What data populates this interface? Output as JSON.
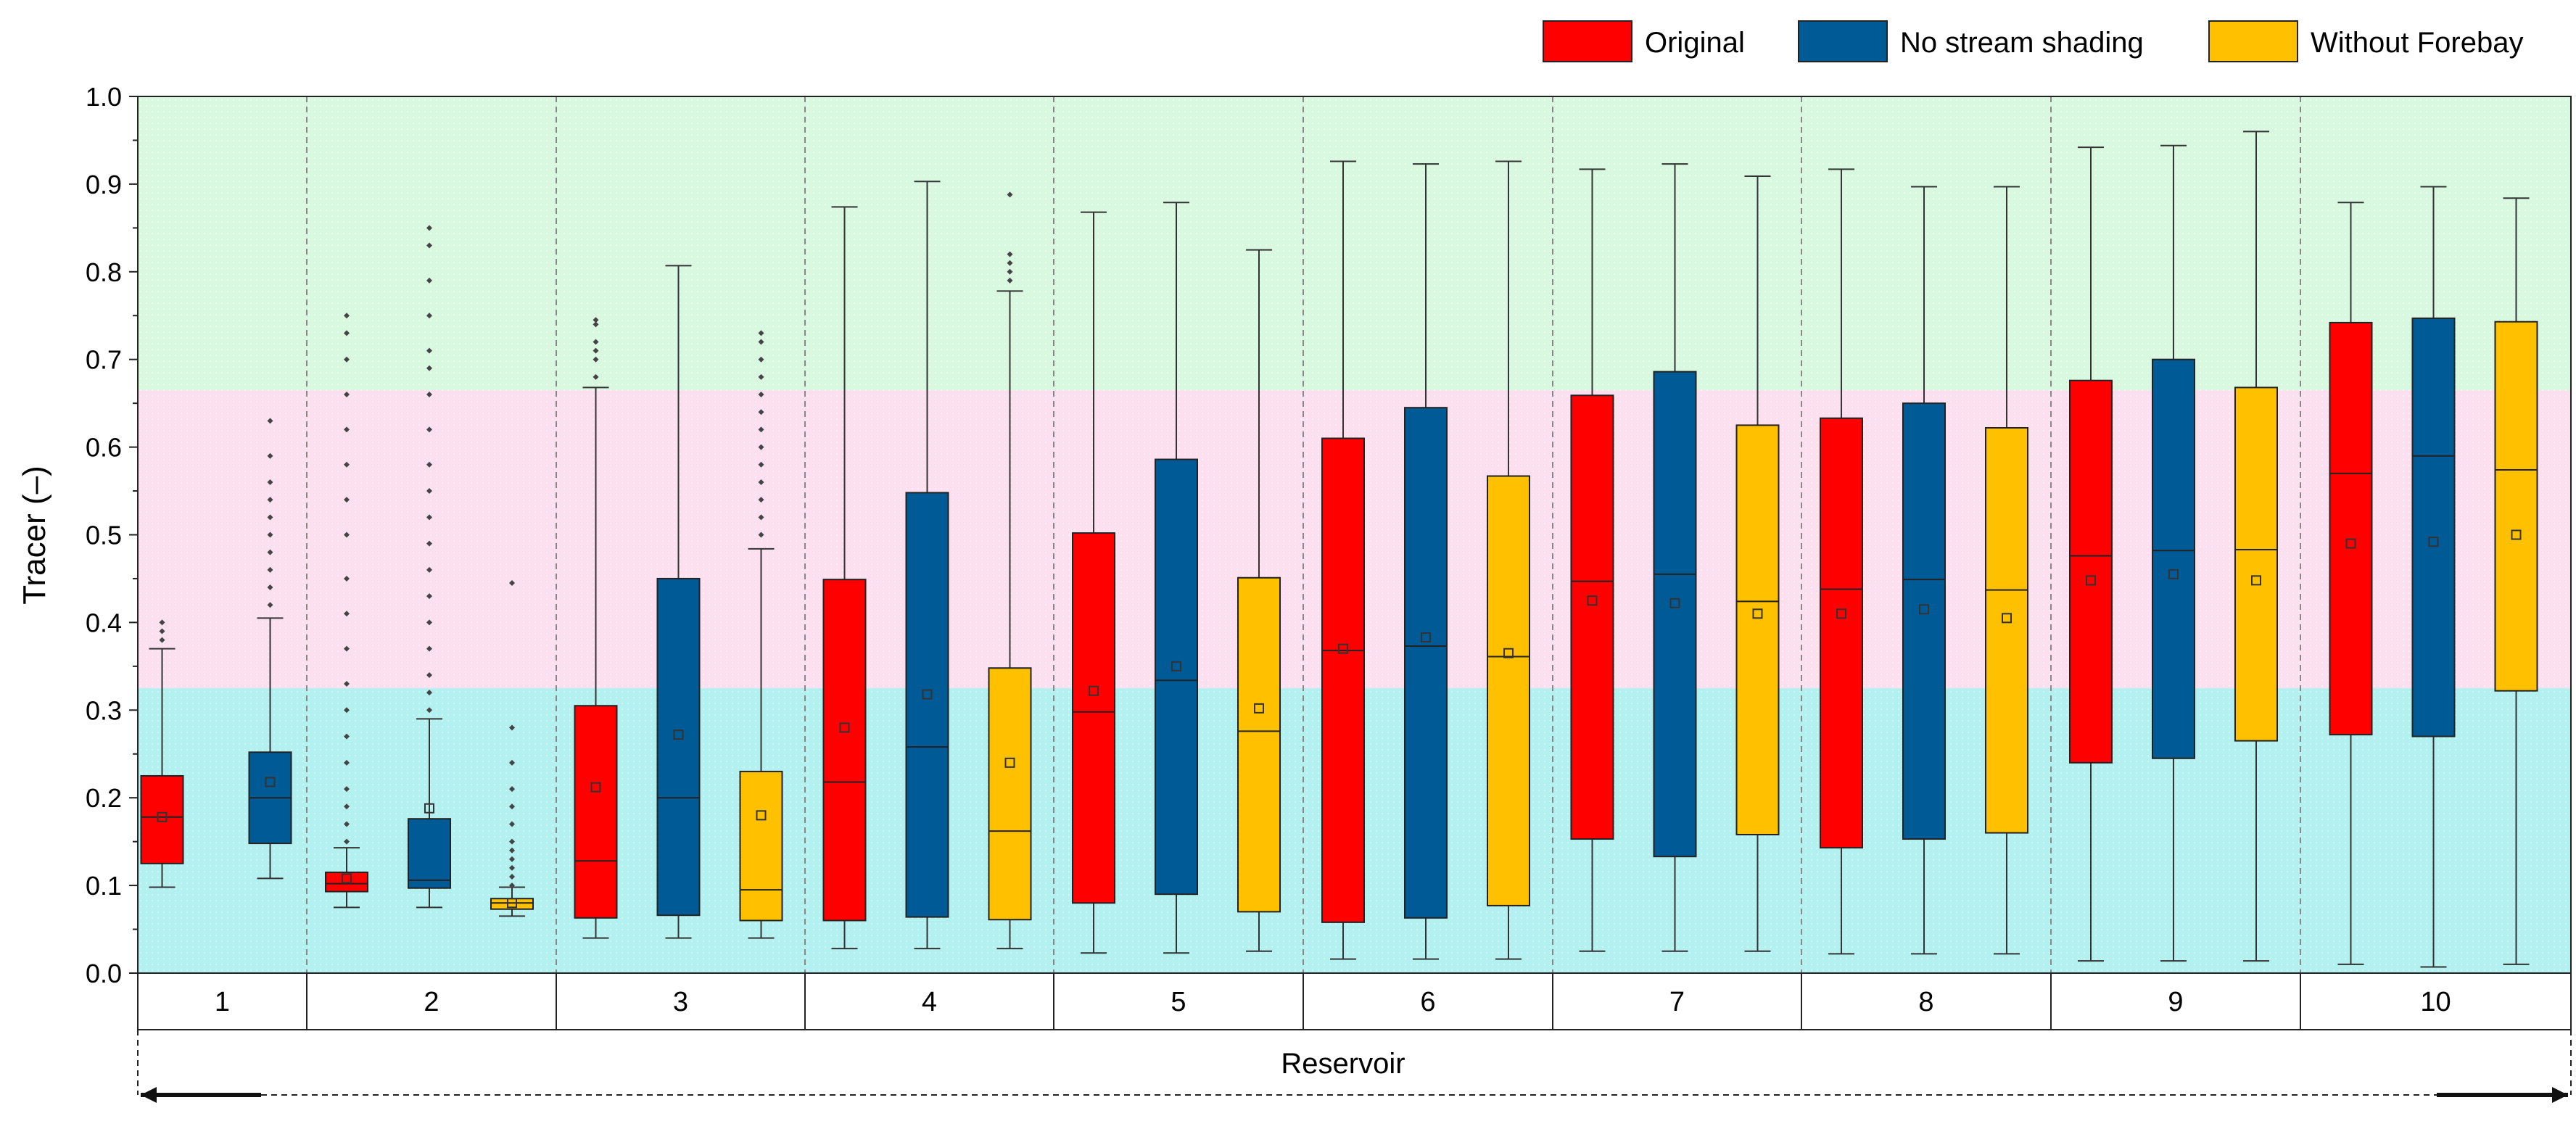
{
  "chart_data": {
    "type": "boxplot",
    "title": "",
    "ylabel": "Tracer (–)",
    "xlabel": "Reservoir",
    "ylim": [
      0,
      1
    ],
    "yticks": [
      "0.0",
      "0.1",
      "0.2",
      "0.3",
      "0.4",
      "0.5",
      "0.6",
      "0.7",
      "0.8",
      "0.9",
      "1.0"
    ],
    "grid": false,
    "legend_position": "top-right",
    "bands": [
      {
        "from": 0.0,
        "to": 0.325,
        "color": "#b3f0f0"
      },
      {
        "from": 0.325,
        "to": 0.665,
        "color": "#fce0f0"
      },
      {
        "from": 0.665,
        "to": 1.0,
        "color": "#d9f8e0"
      }
    ],
    "categories": [
      "1",
      "2",
      "3",
      "4",
      "5",
      "6",
      "7",
      "8",
      "9",
      "10"
    ],
    "series": [
      {
        "name": "Original",
        "color": "#ff0000",
        "boxes": [
          {
            "min": 0.098,
            "q1": 0.125,
            "median": 0.178,
            "q3": 0.225,
            "max": 0.37,
            "mean": 0.178,
            "outliers": [
              0.38,
              0.39,
              0.4
            ]
          },
          {
            "min": 0.075,
            "q1": 0.093,
            "median": 0.102,
            "q3": 0.115,
            "max": 0.143,
            "mean": 0.108,
            "outliers": [
              0.15,
              0.17,
              0.19,
              0.21,
              0.24,
              0.27,
              0.3,
              0.33,
              0.37,
              0.41,
              0.45,
              0.5,
              0.54,
              0.58,
              0.62,
              0.66,
              0.7,
              0.73,
              0.75
            ]
          },
          {
            "min": 0.04,
            "q1": 0.063,
            "median": 0.128,
            "q3": 0.305,
            "max": 0.668,
            "mean": 0.212,
            "outliers": [
              0.68,
              0.7,
              0.71,
              0.72,
              0.74,
              0.745
            ]
          },
          {
            "min": 0.028,
            "q1": 0.06,
            "median": 0.218,
            "q3": 0.449,
            "max": 0.874,
            "mean": 0.28,
            "outliers": []
          },
          {
            "min": 0.023,
            "q1": 0.08,
            "median": 0.298,
            "q3": 0.502,
            "max": 0.868,
            "mean": 0.322,
            "outliers": []
          },
          {
            "min": 0.016,
            "q1": 0.058,
            "median": 0.368,
            "q3": 0.61,
            "max": 0.926,
            "mean": 0.37,
            "outliers": []
          },
          {
            "min": 0.025,
            "q1": 0.153,
            "median": 0.447,
            "q3": 0.659,
            "max": 0.917,
            "mean": 0.425,
            "outliers": []
          },
          {
            "min": 0.022,
            "q1": 0.143,
            "median": 0.438,
            "q3": 0.633,
            "max": 0.917,
            "mean": 0.41,
            "outliers": []
          },
          {
            "min": 0.014,
            "q1": 0.24,
            "median": 0.476,
            "q3": 0.676,
            "max": 0.942,
            "mean": 0.448,
            "outliers": []
          },
          {
            "min": 0.01,
            "q1": 0.272,
            "median": 0.57,
            "q3": 0.742,
            "max": 0.879,
            "mean": 0.49,
            "outliers": []
          }
        ]
      },
      {
        "name": "No stream shading",
        "color": "#005a96",
        "boxes": [
          {
            "min": 0.108,
            "q1": 0.148,
            "median": 0.2,
            "q3": 0.252,
            "max": 0.405,
            "mean": 0.218,
            "outliers": [
              0.42,
              0.44,
              0.46,
              0.48,
              0.5,
              0.52,
              0.54,
              0.56,
              0.59,
              0.63
            ]
          },
          {
            "min": 0.075,
            "q1": 0.097,
            "median": 0.106,
            "q3": 0.176,
            "max": 0.29,
            "mean": 0.188,
            "outliers": [
              0.3,
              0.32,
              0.34,
              0.37,
              0.4,
              0.43,
              0.46,
              0.49,
              0.52,
              0.55,
              0.58,
              0.62,
              0.66,
              0.69,
              0.71,
              0.75,
              0.79,
              0.83,
              0.85
            ]
          },
          {
            "min": 0.04,
            "q1": 0.066,
            "median": 0.2,
            "q3": 0.45,
            "max": 0.807,
            "mean": 0.272,
            "outliers": []
          },
          {
            "min": 0.028,
            "q1": 0.064,
            "median": 0.258,
            "q3": 0.548,
            "max": 0.903,
            "mean": 0.318,
            "outliers": []
          },
          {
            "min": 0.023,
            "q1": 0.09,
            "median": 0.334,
            "q3": 0.586,
            "max": 0.879,
            "mean": 0.35,
            "outliers": []
          },
          {
            "min": 0.016,
            "q1": 0.063,
            "median": 0.373,
            "q3": 0.645,
            "max": 0.923,
            "mean": 0.383,
            "outliers": []
          },
          {
            "min": 0.025,
            "q1": 0.133,
            "median": 0.455,
            "q3": 0.686,
            "max": 0.923,
            "mean": 0.422,
            "outliers": []
          },
          {
            "min": 0.022,
            "q1": 0.153,
            "median": 0.449,
            "q3": 0.65,
            "max": 0.897,
            "mean": 0.415,
            "outliers": []
          },
          {
            "min": 0.014,
            "q1": 0.245,
            "median": 0.482,
            "q3": 0.7,
            "max": 0.944,
            "mean": 0.455,
            "outliers": []
          },
          {
            "min": 0.007,
            "q1": 0.27,
            "median": 0.59,
            "q3": 0.747,
            "max": 0.897,
            "mean": 0.492,
            "outliers": []
          }
        ]
      },
      {
        "name": "Without Forebay",
        "color": "#ffc000",
        "boxes": [
          {
            "min": 0.065,
            "q1": 0.073,
            "median": 0.08,
            "q3": 0.085,
            "max": 0.098,
            "mean": 0.08,
            "outliers": [
              0.1,
              0.11,
              0.12,
              0.13,
              0.14,
              0.15,
              0.17,
              0.19,
              0.21,
              0.24,
              0.28,
              0.445
            ]
          },
          {
            "min": 0.04,
            "q1": 0.06,
            "median": 0.095,
            "q3": 0.23,
            "max": 0.484,
            "mean": 0.18,
            "outliers": [
              0.5,
              0.52,
              0.54,
              0.56,
              0.58,
              0.6,
              0.62,
              0.64,
              0.66,
              0.68,
              0.7,
              0.72,
              0.73
            ]
          },
          {
            "min": 0.028,
            "q1": 0.061,
            "median": 0.162,
            "q3": 0.348,
            "max": 0.778,
            "mean": 0.24,
            "outliers": [
              0.79,
              0.8,
              0.81,
              0.82,
              0.888
            ]
          },
          {
            "min": 0.025,
            "q1": 0.07,
            "median": 0.276,
            "q3": 0.451,
            "max": 0.825,
            "mean": 0.302,
            "outliers": []
          },
          {
            "min": 0.016,
            "q1": 0.077,
            "median": 0.361,
            "q3": 0.567,
            "max": 0.926,
            "mean": 0.365,
            "outliers": []
          },
          {
            "min": 0.025,
            "q1": 0.158,
            "median": 0.424,
            "q3": 0.625,
            "max": 0.909,
            "mean": 0.41,
            "outliers": []
          },
          {
            "min": 0.022,
            "q1": 0.16,
            "median": 0.437,
            "q3": 0.622,
            "max": 0.897,
            "mean": 0.405,
            "outliers": []
          },
          {
            "min": 0.014,
            "q1": 0.265,
            "median": 0.483,
            "q3": 0.668,
            "max": 0.96,
            "mean": 0.448,
            "outliers": []
          },
          {
            "min": 0.01,
            "q1": 0.322,
            "median": 0.574,
            "q3": 0.743,
            "max": 0.884,
            "mean": 0.5,
            "outliers": []
          }
        ]
      }
    ],
    "box_assignment": [
      {
        "category": "1",
        "series": [
          "Original",
          "No stream shading"
        ]
      },
      {
        "category": "2",
        "series": [
          "Original",
          "No stream shading",
          "Without Forebay"
        ]
      },
      {
        "category": "3",
        "series": [
          "Original",
          "No stream shading",
          "Without Forebay"
        ]
      },
      {
        "category": "4",
        "series": [
          "Original",
          "No stream shading",
          "Without Forebay"
        ]
      },
      {
        "category": "5",
        "series": [
          "Original",
          "No stream shading",
          "Without Forebay"
        ]
      },
      {
        "category": "6",
        "series": [
          "Original",
          "No stream shading",
          "Without Forebay"
        ]
      },
      {
        "category": "7",
        "series": [
          "Original",
          "No stream shading",
          "Without Forebay"
        ]
      },
      {
        "category": "8",
        "series": [
          "Original",
          "No stream shading",
          "Without Forebay"
        ]
      },
      {
        "category": "9",
        "series": [
          "Original",
          "No stream shading",
          "Without Forebay"
        ]
      },
      {
        "category": "10",
        "series": [
          "Original",
          "No stream shading",
          "Without Forebay"
        ]
      }
    ]
  }
}
